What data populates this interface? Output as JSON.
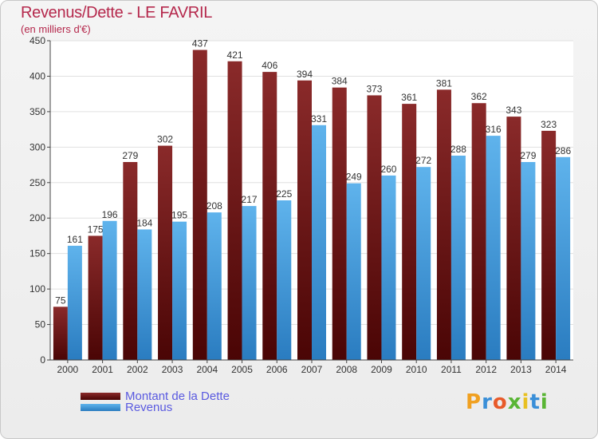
{
  "header": {
    "title": "Revenus/Dette - LE FAVRIL",
    "subtitle": "(en milliers d'€)"
  },
  "logo": {
    "text": "Proxiti"
  },
  "colors": {
    "dette": "#6e1414",
    "revenus": "#3d8fd0",
    "title": "#b5284c",
    "legend_text": "#5a5ae0"
  },
  "chart_data": {
    "type": "bar",
    "title": "Revenus/Dette - LE FAVRIL",
    "subtitle": "(en milliers d'€)",
    "xlabel": "",
    "ylabel": "",
    "ylim": [
      0,
      450
    ],
    "yticks": [
      0,
      50,
      100,
      150,
      200,
      250,
      300,
      350,
      400,
      450
    ],
    "grid": true,
    "legend_position": "bottom-left",
    "categories": [
      "2000",
      "2001",
      "2002",
      "2003",
      "2004",
      "2005",
      "2006",
      "2007",
      "2008",
      "2009",
      "2010",
      "2011",
      "2012",
      "2013",
      "2014"
    ],
    "series": [
      {
        "name": "Montant de la Dette",
        "values": [
          75,
          175,
          279,
          302,
          437,
          421,
          406,
          394,
          384,
          373,
          361,
          381,
          362,
          343,
          323
        ]
      },
      {
        "name": "Revenus",
        "values": [
          161,
          196,
          184,
          195,
          208,
          217,
          225,
          331,
          249,
          260,
          272,
          288,
          316,
          279,
          286
        ]
      }
    ]
  }
}
